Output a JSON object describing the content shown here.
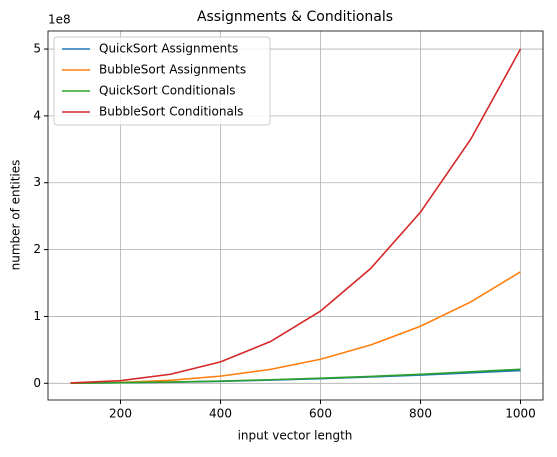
{
  "chart_data": {
    "type": "line",
    "title": "Assignments & Conditionals",
    "xlabel": "input vector length",
    "ylabel": "number of entities",
    "y_offset_label": "1e8",
    "x": [
      100,
      200,
      300,
      400,
      500,
      600,
      700,
      800,
      900,
      1000
    ],
    "series": [
      {
        "name": "QuickSort Assignments",
        "color": "#1f77b4",
        "values": [
          0.002,
          0.008,
          0.017,
          0.03,
          0.048,
          0.069,
          0.094,
          0.123,
          0.156,
          0.19
        ]
      },
      {
        "name": "BubbleSort Assignments",
        "color": "#ff7f0e",
        "values": [
          0.002,
          0.013,
          0.045,
          0.107,
          0.208,
          0.36,
          0.572,
          0.853,
          1.215,
          1.667
        ]
      },
      {
        "name": "QuickSort Conditionals",
        "color": "#2ca02c",
        "values": [
          0.002,
          0.009,
          0.019,
          0.034,
          0.053,
          0.076,
          0.103,
          0.135,
          0.171,
          0.21
        ]
      },
      {
        "name": "BubbleSort Conditionals",
        "color": "#d62728",
        "values": [
          0.005,
          0.04,
          0.135,
          0.32,
          0.625,
          1.08,
          1.715,
          2.56,
          3.645,
          5.0
        ]
      }
    ],
    "xlim": [
      55,
      1045
    ],
    "ylim": [
      -0.25,
      5.27
    ],
    "xticks": [
      200,
      400,
      600,
      800,
      1000
    ],
    "yticks": [
      0,
      1,
      2,
      3,
      4,
      5
    ],
    "grid": true,
    "legend": "upper left"
  }
}
